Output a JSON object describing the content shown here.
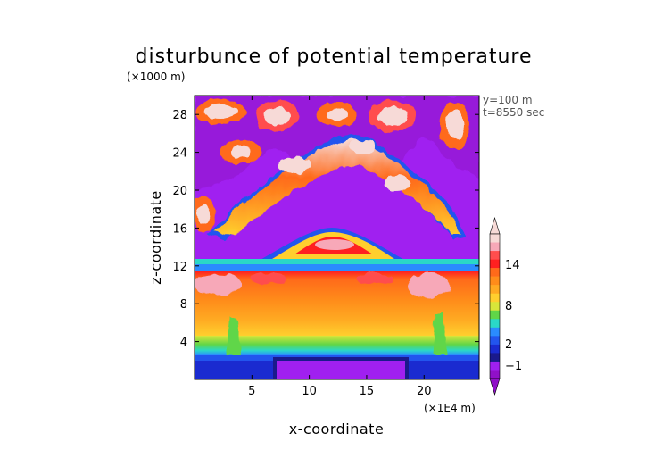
{
  "chart_data": {
    "type": "heatmap",
    "title": "disturbunce of potential temperature",
    "xlabel": "x-coordinate",
    "ylabel": "z-coordinate",
    "x_unit": "(×1E4 m)",
    "y_unit": "(×1000 m)",
    "annotations": [
      "y=100 m",
      "t=8550 sec"
    ],
    "x_ticks": [
      5,
      10,
      15,
      20
    ],
    "y_ticks": [
      4,
      8,
      12,
      16,
      20,
      24,
      28
    ],
    "xlim": [
      0,
      24.8
    ],
    "ylim": [
      0,
      30
    ],
    "colorbar": {
      "tick_labels": [
        "14",
        "8",
        "2",
        "−1"
      ],
      "tick_values": [
        14,
        8,
        2,
        -1
      ],
      "colors": [
        "#f7dad7",
        "#f7a8b8",
        "#ff4d4d",
        "#ff2020",
        "#ff6a1a",
        "#ff8c1a",
        "#ffaa22",
        "#ffcf2e",
        "#d8e63a",
        "#60d648",
        "#2ad8c8",
        "#2a8cff",
        "#2255ee",
        "#1a2bd0",
        "#1a1a8c",
        "#a020f0",
        "#9010c8"
      ],
      "extend": "both"
    },
    "fields": [
      {
        "region": "surface layer",
        "z_range": [
          0,
          2
        ],
        "value": -0.5
      },
      {
        "region": "cold pool",
        "x_range": [
          7,
          19
        ],
        "z_range": [
          0,
          2
        ],
        "value": -3
      },
      {
        "region": "lower troposphere",
        "z_range": [
          2,
          5
        ],
        "value": 4
      },
      {
        "region": "mid troposphere",
        "z_range": [
          5,
          11
        ],
        "value": 9
      },
      {
        "region": "upper troposphere",
        "z_range": [
          11,
          12
        ],
        "value": 14
      },
      {
        "region": "tropopause band",
        "z_range": [
          12,
          13
        ],
        "value": -1
      },
      {
        "region": "stratosphere",
        "z_range": [
          13,
          30
        ],
        "value": -3
      },
      {
        "region": "overshooting dome",
        "x_range": [
          7.5,
          17
        ],
        "z_range": [
          13,
          15.5
        ],
        "value": 8
      },
      {
        "region": "gravity wave arc",
        "x_range": [
          2,
          24
        ],
        "z_range": [
          15,
          26
        ],
        "value": 10
      },
      {
        "region": "upper cells",
        "x_range": [
          0,
          24.8
        ],
        "z_range": [
          23,
          30
        ],
        "value": 14
      }
    ]
  }
}
